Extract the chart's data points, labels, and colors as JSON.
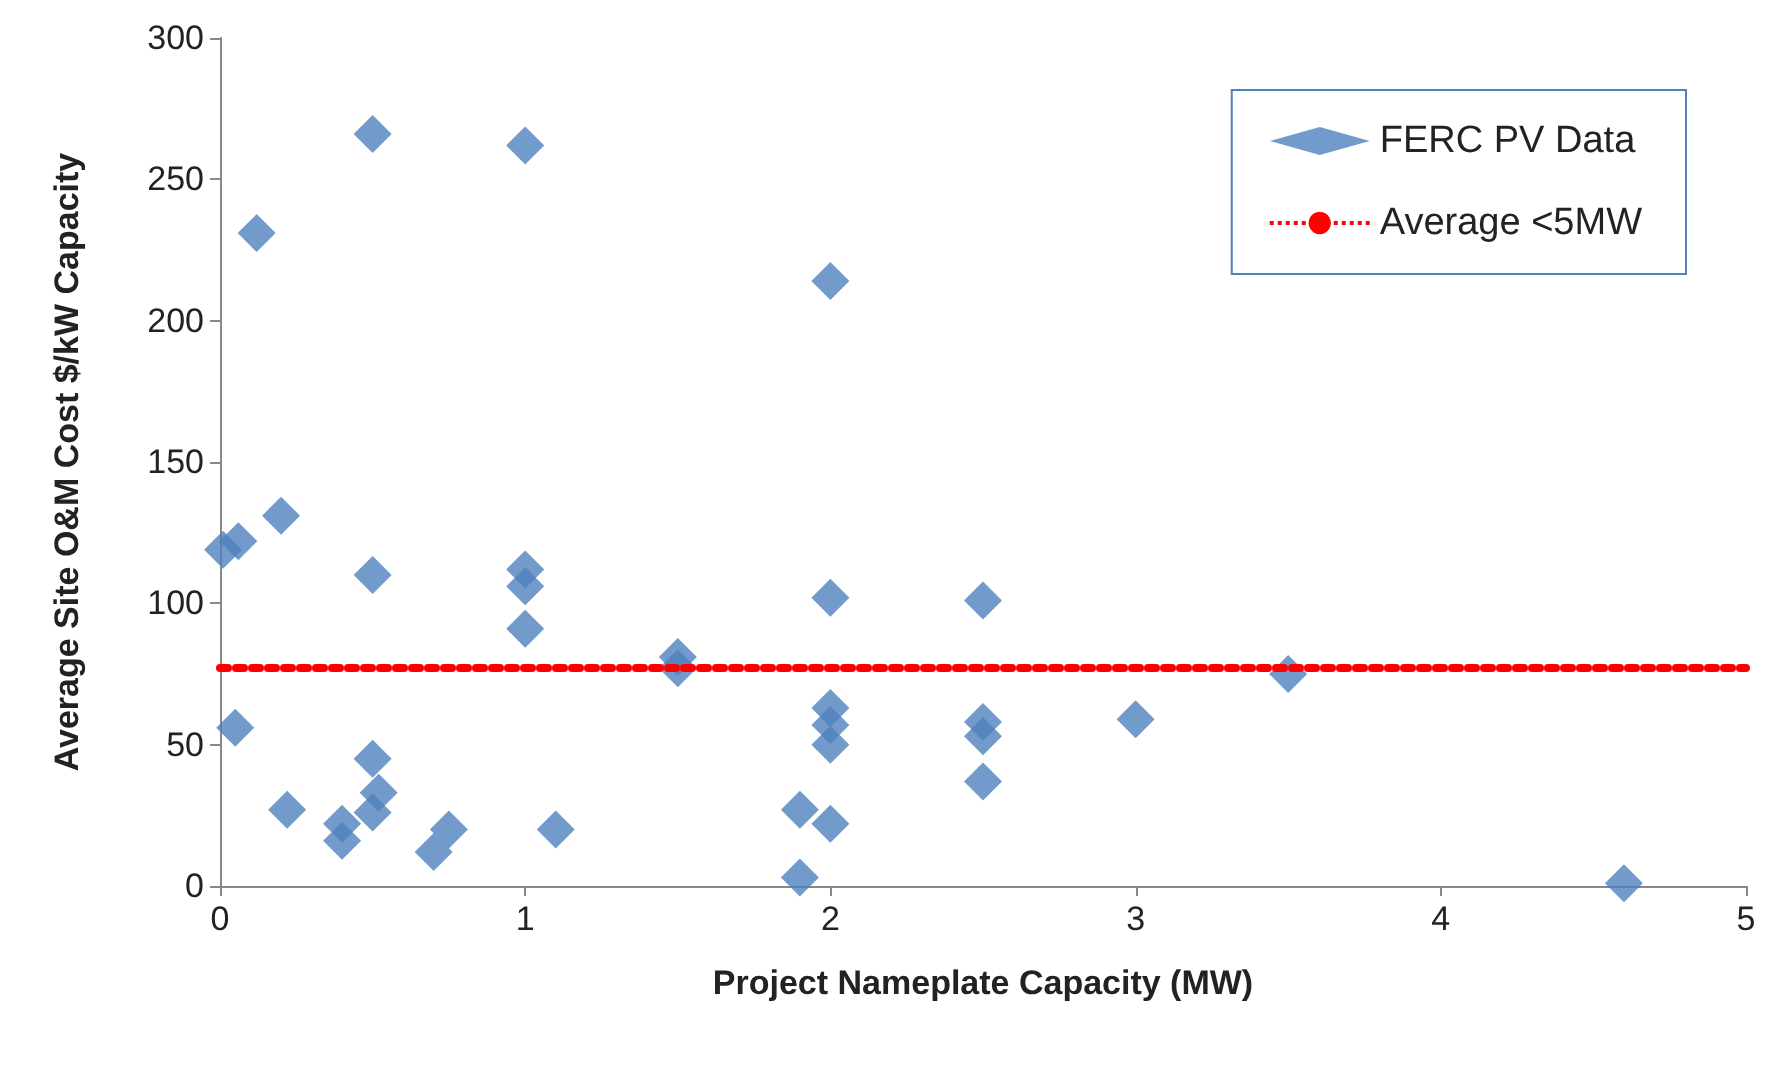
{
  "chart_data": {
    "type": "scatter",
    "xlabel": "Project Nameplate Capacity (MW)",
    "ylabel": "Average Site O&M Cost $/kW Capacity",
    "x": [
      0.01,
      0.06,
      0.05,
      0.12,
      0.2,
      0.22,
      0.4,
      0.4,
      0.5,
      0.5,
      0.5,
      0.5,
      0.52,
      0.7,
      0.75,
      1,
      1,
      1,
      1,
      1.1,
      1.5,
      1.5,
      1.9,
      1.9,
      2,
      2,
      2,
      2,
      2,
      2,
      2.5,
      2.5,
      2.5,
      2.5,
      3,
      3.5,
      4.6
    ],
    "series": [
      {
        "name": "FERC PV Data",
        "color": "#4f81bd",
        "values": [
          119,
          122,
          56,
          231,
          131,
          27,
          22,
          16,
          266,
          110,
          45,
          26,
          33,
          12,
          20,
          262,
          112,
          106,
          91,
          20,
          81,
          77,
          3,
          27,
          214,
          102,
          63,
          57,
          50,
          22,
          101,
          58,
          53,
          37,
          59,
          75,
          1
        ]
      }
    ],
    "ref_lines": [
      {
        "axis": "y",
        "value": 77,
        "label": "Average <5MW",
        "color": "#ff0000",
        "line_style": "dotted"
      }
    ],
    "xlim": [
      0,
      5
    ],
    "xticks": [
      0,
      1,
      2,
      3,
      4,
      5
    ],
    "ylim": [
      0,
      300
    ],
    "yticks": [
      0,
      50,
      100,
      150,
      200,
      250,
      300
    ],
    "grid": false,
    "legend": "top right",
    "marker": "diamond"
  }
}
